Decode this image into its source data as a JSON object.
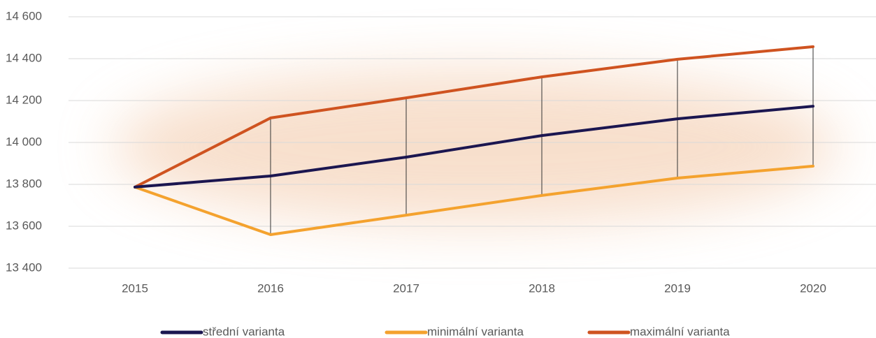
{
  "chart_data": {
    "type": "line",
    "categories": [
      "2015",
      "2016",
      "2017",
      "2018",
      "2019",
      "2020"
    ],
    "series": [
      {
        "name": "střední varianta",
        "color": "#1b1650",
        "values": [
          13787,
          13840,
          13930,
          14033,
          14113,
          14173
        ]
      },
      {
        "name": "minimální varianta",
        "color": "#f4a22e",
        "values": [
          13787,
          13560,
          13653,
          13747,
          13830,
          13887
        ]
      },
      {
        "name": "maximální varianta",
        "color": "#cf5320",
        "values": [
          13787,
          14117,
          14213,
          14313,
          14397,
          14457
        ]
      }
    ],
    "ylim": [
      13400,
      14600
    ],
    "yticks": [
      {
        "value": 13400,
        "label": "13 400"
      },
      {
        "value": 13600,
        "label": "13 600"
      },
      {
        "value": 13800,
        "label": "13 800"
      },
      {
        "value": 14000,
        "label": "14 000"
      },
      {
        "value": 14200,
        "label": "14 200"
      },
      {
        "value": 14400,
        "label": "14 400"
      },
      {
        "value": 14600,
        "label": "14 600"
      }
    ],
    "grid": true,
    "hilo_lines": true,
    "legend": "bottom"
  }
}
